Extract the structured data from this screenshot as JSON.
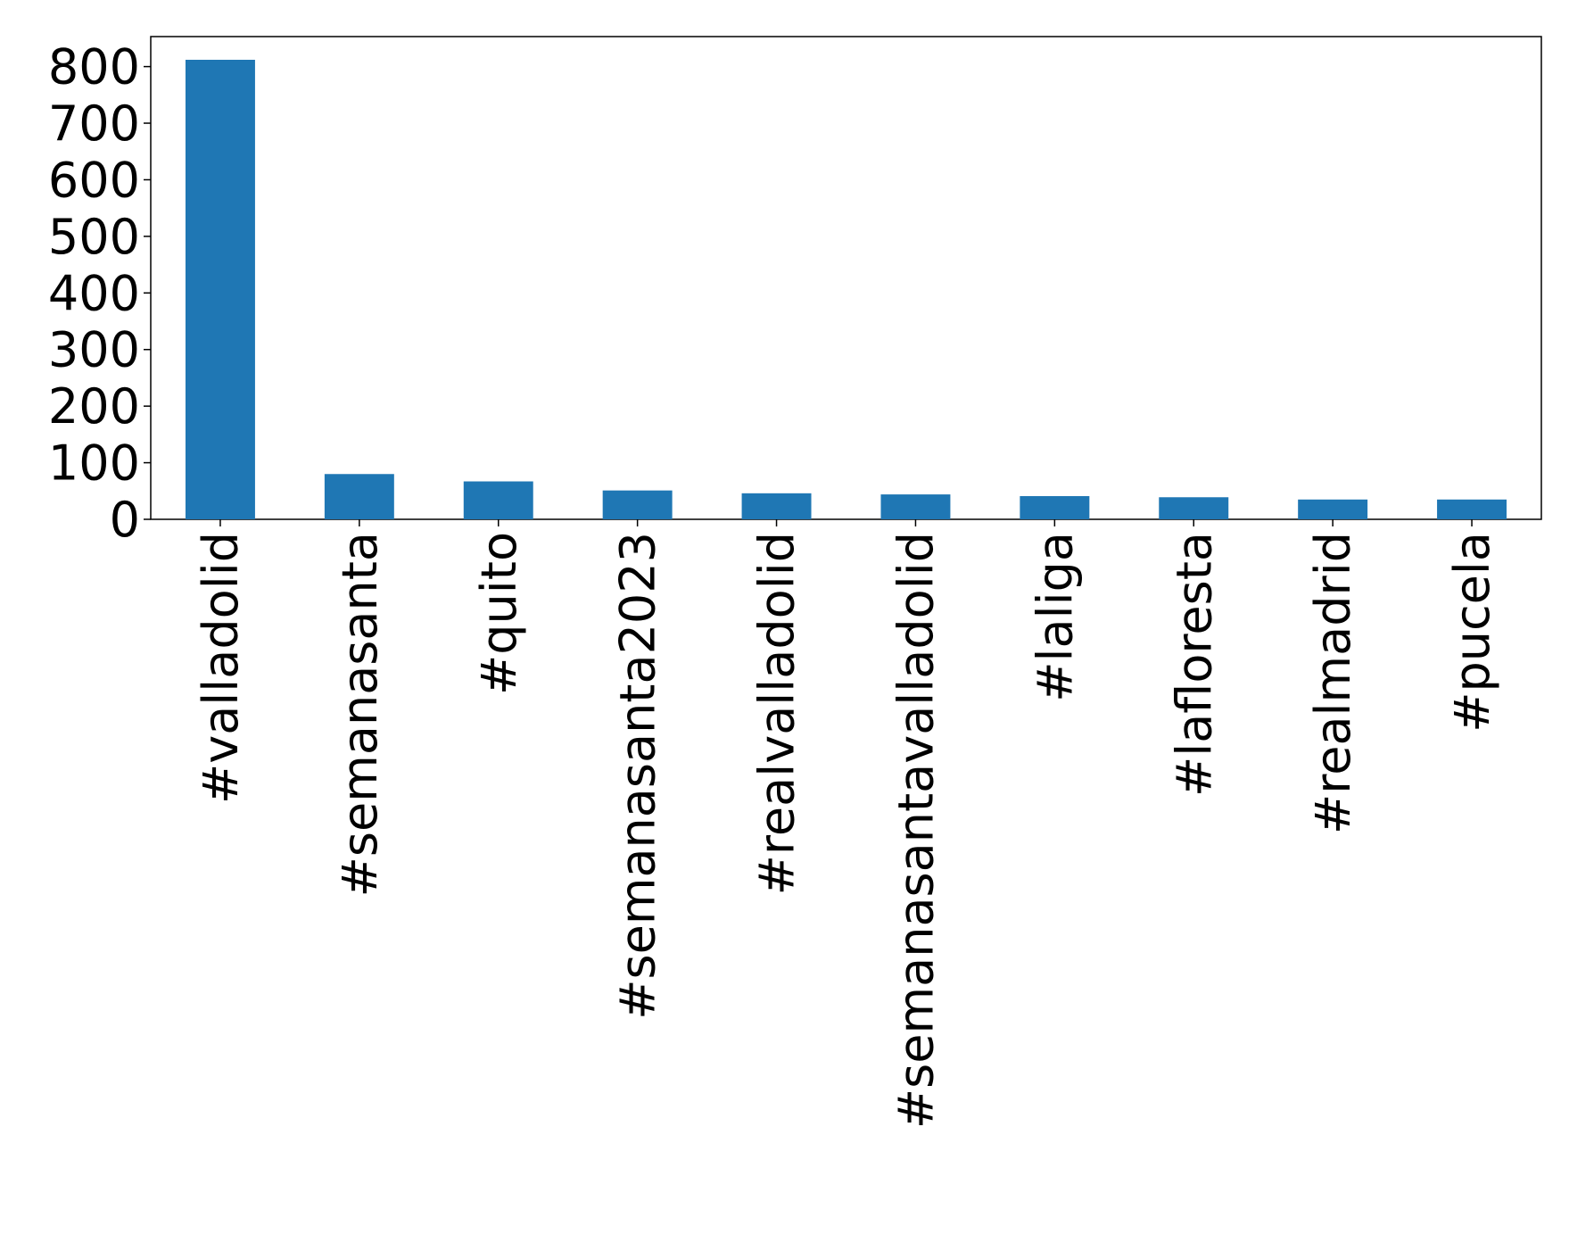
{
  "chart_data": {
    "type": "bar",
    "categories": [
      "#valladolid",
      "#semanasanta",
      "#quito",
      "#semanasanta2023",
      "#realvalladolid",
      "#semanasantavalladolid",
      "#laliga",
      "#lafloresta",
      "#realmadrid",
      "#pucela"
    ],
    "values": [
      812,
      80,
      67,
      51,
      46,
      44,
      41,
      39,
      35,
      35
    ],
    "color": "#1f77b4",
    "ylim": [
      0,
      853
    ],
    "yticks": [
      0,
      100,
      200,
      300,
      400,
      500,
      600,
      700,
      800
    ],
    "grid": false
  }
}
